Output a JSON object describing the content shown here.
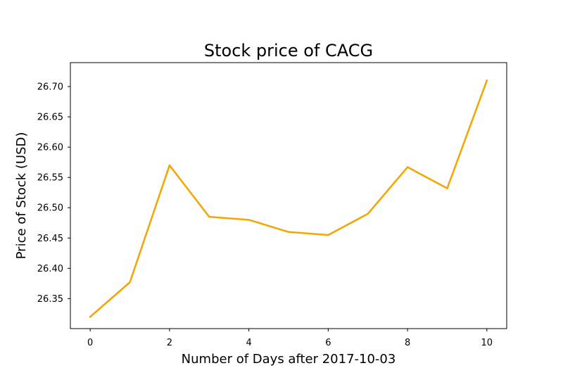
{
  "chart_data": {
    "type": "line",
    "title": "Stock price of CACG",
    "xlabel": "Number of Days after 2017-10-03",
    "ylabel": "Price of Stock (USD)",
    "x": [
      0,
      1,
      2,
      3,
      4,
      5,
      6,
      7,
      8,
      9,
      10
    ],
    "series": [
      {
        "values": [
          26.32,
          26.377,
          26.57,
          26.485,
          26.48,
          26.46,
          26.455,
          26.49,
          26.567,
          26.532,
          26.71
        ],
        "color": "#f5a500"
      }
    ],
    "xlim": [
      -0.5,
      10.5
    ],
    "ylim": [
      26.3005,
      26.7395
    ],
    "xticks": [
      0,
      2,
      4,
      6,
      8,
      10
    ],
    "xtick_labels": [
      "0",
      "2",
      "4",
      "6",
      "8",
      "10"
    ],
    "yticks": [
      26.35,
      26.4,
      26.45,
      26.5,
      26.55,
      26.6,
      26.65,
      26.7
    ],
    "ytick_labels": [
      "26.35",
      "26.40",
      "26.45",
      "26.50",
      "26.55",
      "26.60",
      "26.65",
      "26.70"
    ],
    "grid": false,
    "legend": "none"
  }
}
